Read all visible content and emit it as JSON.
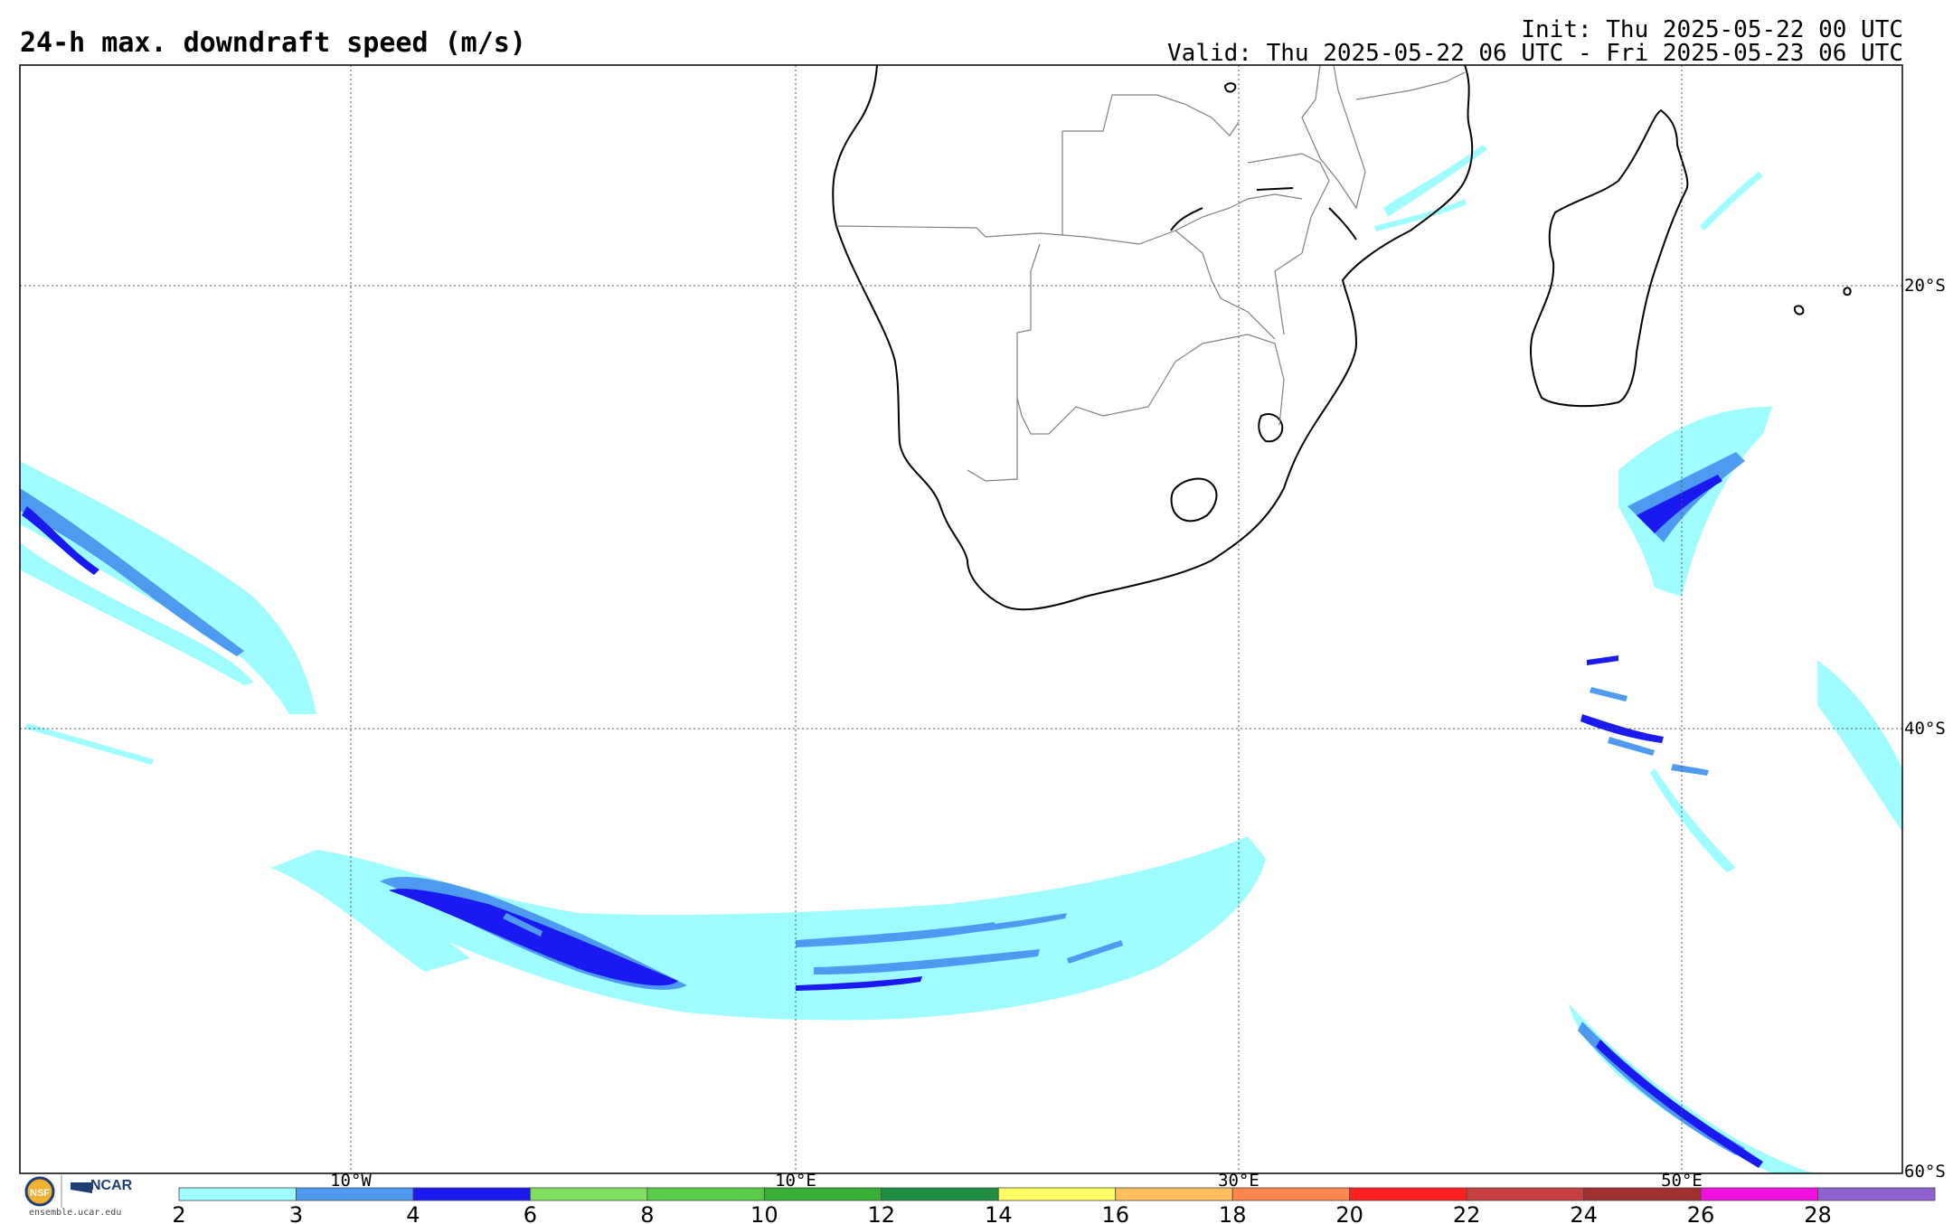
{
  "header": {
    "title": "24-h max. downdraft speed (m/s)",
    "init": "Init: Thu 2025-05-22 00 UTC",
    "valid": "Valid: Thu 2025-05-22 06 UTC - Fri 2025-05-23 06 UTC"
  },
  "lat_labels": [
    "20°S",
    "40°S",
    "60°S"
  ],
  "lon_labels": [
    "10°W",
    "10°E",
    "30°E",
    "50°E"
  ],
  "colorbar": {
    "ticks": [
      "2",
      "3",
      "4",
      "6",
      "8",
      "10",
      "12",
      "14",
      "16",
      "18",
      "20",
      "22",
      "24",
      "26",
      "28"
    ],
    "colors": [
      "#9ffcff",
      "#4e9af0",
      "#1a1af0",
      "#7fe060",
      "#58cc48",
      "#38b038",
      "#209040",
      "#ffff66",
      "#ffc060",
      "#ff8850",
      "#ff2020",
      "#c84040",
      "#a03030",
      "#f010e0",
      "#9060d0"
    ]
  },
  "logos": {
    "nsf": "NSF",
    "ncar": "NCAR",
    "site": "ensemble.ucar.edu"
  }
}
